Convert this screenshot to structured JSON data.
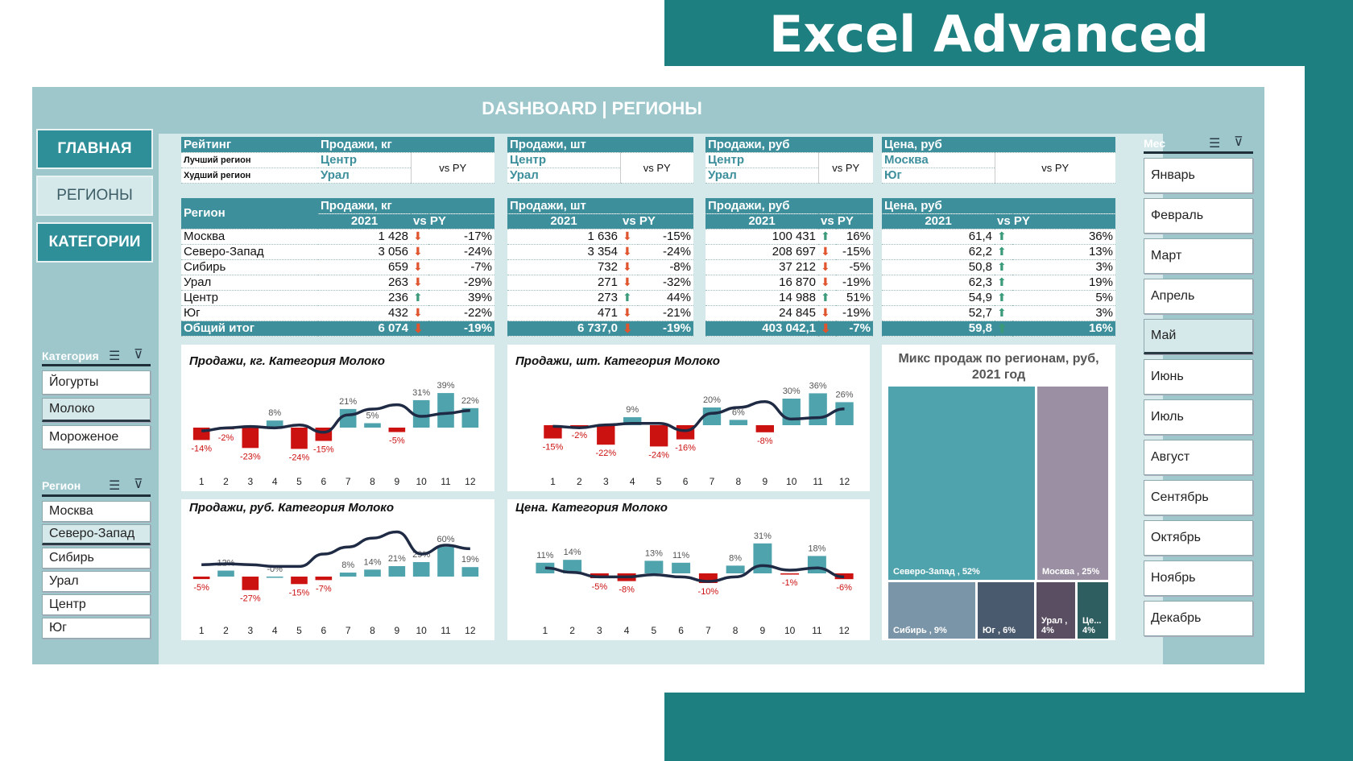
{
  "brand": "Excel Advanced",
  "dashboard_title": "DASHBOARD | РЕГИОНЫ",
  "nav": [
    {
      "label": "ГЛАВНАЯ"
    },
    {
      "label": "РЕГИОНЫ"
    },
    {
      "label": "КАТЕГОРИИ"
    }
  ],
  "category_slicer": {
    "title": "Категория",
    "items": [
      "Йогурты",
      "Молоко",
      "Мороженое"
    ],
    "selected": "Молоко"
  },
  "region_slicer": {
    "title": "Регион",
    "items": [
      "Москва",
      "Северо-Запад",
      "Сибирь",
      "Урал",
      "Центр",
      "Юг"
    ],
    "selected": "Северо-Запад"
  },
  "month_slicer": {
    "title": "Мес",
    "items": [
      "Январь",
      "Февраль",
      "Март",
      "Апрель",
      "Май",
      "Июнь",
      "Июль",
      "Август",
      "Сентябрь",
      "Октябрь",
      "Ноябрь",
      "Декабрь"
    ],
    "selected": "Май"
  },
  "rating": {
    "header": "Рейтинг",
    "best_label": "Лучший регион",
    "worst_label": "Худший регион",
    "vs": "vs PY",
    "cols": [
      {
        "title": "Продажи, кг",
        "best": "Центр",
        "worst": "Урал"
      },
      {
        "title": "Продажи, шт",
        "best": "Центр",
        "worst": "Урал"
      },
      {
        "title": "Продажи, руб",
        "best": "Центр",
        "worst": "Урал"
      },
      {
        "title": "Цена, руб",
        "best": "Москва",
        "worst": "Юг"
      }
    ]
  },
  "table": {
    "region_header": "Регион",
    "year": "2021",
    "vs": "vs PY",
    "total_label": "Общий итог",
    "regions": [
      "Москва",
      "Северо-Запад",
      "Сибирь",
      "Урал",
      "Центр",
      "Юг"
    ],
    "blocks": [
      {
        "title": "Продажи, кг",
        "values": [
          "1 428",
          "3 056",
          "659",
          "263",
          "236",
          "432"
        ],
        "pct": [
          "-17%",
          "-24%",
          "-7%",
          "-29%",
          "39%",
          "-22%"
        ],
        "dirs": [
          "d",
          "d",
          "d",
          "d",
          "u",
          "d"
        ],
        "total": "6 074",
        "total_pct": "-19%",
        "total_dir": "d"
      },
      {
        "title": "Продажи, шт",
        "values": [
          "1 636",
          "3 354",
          "732",
          "271",
          "273",
          "471"
        ],
        "pct": [
          "-15%",
          "-24%",
          "-8%",
          "-32%",
          "44%",
          "-21%"
        ],
        "dirs": [
          "d",
          "d",
          "d",
          "d",
          "u",
          "d"
        ],
        "total": "6 737,0",
        "total_pct": "-19%",
        "total_dir": "d"
      },
      {
        "title": "Продажи, руб",
        "values": [
          "100 431",
          "208 697",
          "37 212",
          "16 870",
          "14 988",
          "24 845"
        ],
        "pct": [
          "16%",
          "-15%",
          "-5%",
          "-19%",
          "51%",
          "-19%"
        ],
        "dirs": [
          "u",
          "d",
          "d",
          "d",
          "u",
          "d"
        ],
        "total": "403 042,1",
        "total_pct": "-7%",
        "total_dir": "d"
      },
      {
        "title": "Цена, руб",
        "values": [
          "61,4",
          "62,2",
          "50,8",
          "62,3",
          "54,9",
          "52,7"
        ],
        "pct": [
          "36%",
          "13%",
          "3%",
          "19%",
          "5%",
          "3%"
        ],
        "dirs": [
          "u",
          "u",
          "u",
          "u",
          "u",
          "u"
        ],
        "total": "59,8",
        "total_pct": "16%",
        "total_dir": "u"
      }
    ]
  },
  "chart_data": [
    {
      "type": "bar",
      "title": "Продажи, кг. Категория Молоко",
      "categories": [
        "1",
        "2",
        "3",
        "4",
        "5",
        "6",
        "7",
        "8",
        "9",
        "10",
        "11",
        "12"
      ],
      "values": [
        -14,
        -2,
        -23,
        8,
        -24,
        -15,
        21,
        5,
        -5,
        31,
        39,
        22
      ],
      "labels": [
        "-14%",
        "-2%",
        "-23%",
        "8%",
        "-24%",
        "-15%",
        "21%",
        "5%",
        "-5%",
        "31%",
        "39%",
        "22%"
      ],
      "line": [
        -5,
        -3,
        -2,
        -3,
        -1,
        -6,
        6,
        10,
        13,
        5,
        7,
        9
      ]
    },
    {
      "type": "bar",
      "title": "Продажи, шт. Категория Молоко",
      "categories": [
        "1",
        "2",
        "3",
        "4",
        "5",
        "6",
        "7",
        "8",
        "9",
        "10",
        "11",
        "12"
      ],
      "values": [
        -15,
        -2,
        -22,
        9,
        -24,
        -16,
        20,
        6,
        -8,
        30,
        36,
        26
      ],
      "labels": [
        "-15%",
        "-2%",
        "-22%",
        "9%",
        "-24%",
        "-16%",
        "20%",
        "6%",
        "-8%",
        "30%",
        "36%",
        "26%"
      ],
      "line": [
        -3,
        -4,
        -2,
        -1,
        -1,
        -6,
        6,
        10,
        14,
        2,
        3,
        9
      ]
    },
    {
      "type": "bar",
      "title": "Продажи, руб. Категория Молоко",
      "categories": [
        "1",
        "2",
        "3",
        "4",
        "5",
        "6",
        "7",
        "8",
        "9",
        "10",
        "11",
        "12"
      ],
      "values": [
        -5,
        12,
        -27,
        0,
        -15,
        -7,
        8,
        14,
        21,
        29,
        60,
        19
      ],
      "labels": [
        "-5%",
        "12%",
        "-27%",
        "-0%",
        "-15%",
        "-7%",
        "8%",
        "14%",
        "21%",
        "29%",
        "60%",
        "19%"
      ],
      "line": [
        8,
        9,
        8,
        6,
        6,
        20,
        28,
        38,
        45,
        20,
        30,
        26
      ]
    },
    {
      "type": "bar",
      "title": "Цена. Категория Молоко",
      "categories": [
        "1",
        "2",
        "3",
        "4",
        "5",
        "6",
        "7",
        "8",
        "9",
        "10",
        "11",
        "12"
      ],
      "values": [
        11,
        14,
        -5,
        -8,
        13,
        11,
        -10,
        8,
        31,
        -1,
        18,
        -6
      ],
      "labels": [
        "11%",
        "14%",
        "-5%",
        "-8%",
        "13%",
        "11%",
        "-10%",
        "8%",
        "31%",
        "-1%",
        "18%",
        "-6%"
      ],
      "line": [
        32,
        28,
        24,
        24,
        26,
        24,
        20,
        24,
        34,
        30,
        32,
        24
      ]
    },
    {
      "type": "treemap",
      "title": "Микс продаж по регионам, руб, 2021 год",
      "items": [
        {
          "name": "Северо-Запад",
          "value": 52,
          "label": "Северо-Запад , 52%"
        },
        {
          "name": "Москва",
          "value": 25,
          "label": "Москва , 25%"
        },
        {
          "name": "Сибирь",
          "value": 9,
          "label": "Сибирь , 9%"
        },
        {
          "name": "Юг",
          "value": 6,
          "label": "Юг , 6%"
        },
        {
          "name": "Урал",
          "value": 4,
          "label": "Урал , 4%"
        },
        {
          "name": "Центр",
          "value": 4,
          "label": "Це... 4%"
        }
      ]
    }
  ],
  "colors": {
    "teal": "#1d7f7f",
    "header": "#3d8f9c",
    "pos_bar": "#4fa3ad",
    "neg_bar": "#cc1111",
    "line": "#1f2a44",
    "tree": [
      "#4fa3ad",
      "#9a8fa3",
      "#7a94a8",
      "#4a5a6e",
      "#5a4e63",
      "#2f5e60"
    ]
  }
}
